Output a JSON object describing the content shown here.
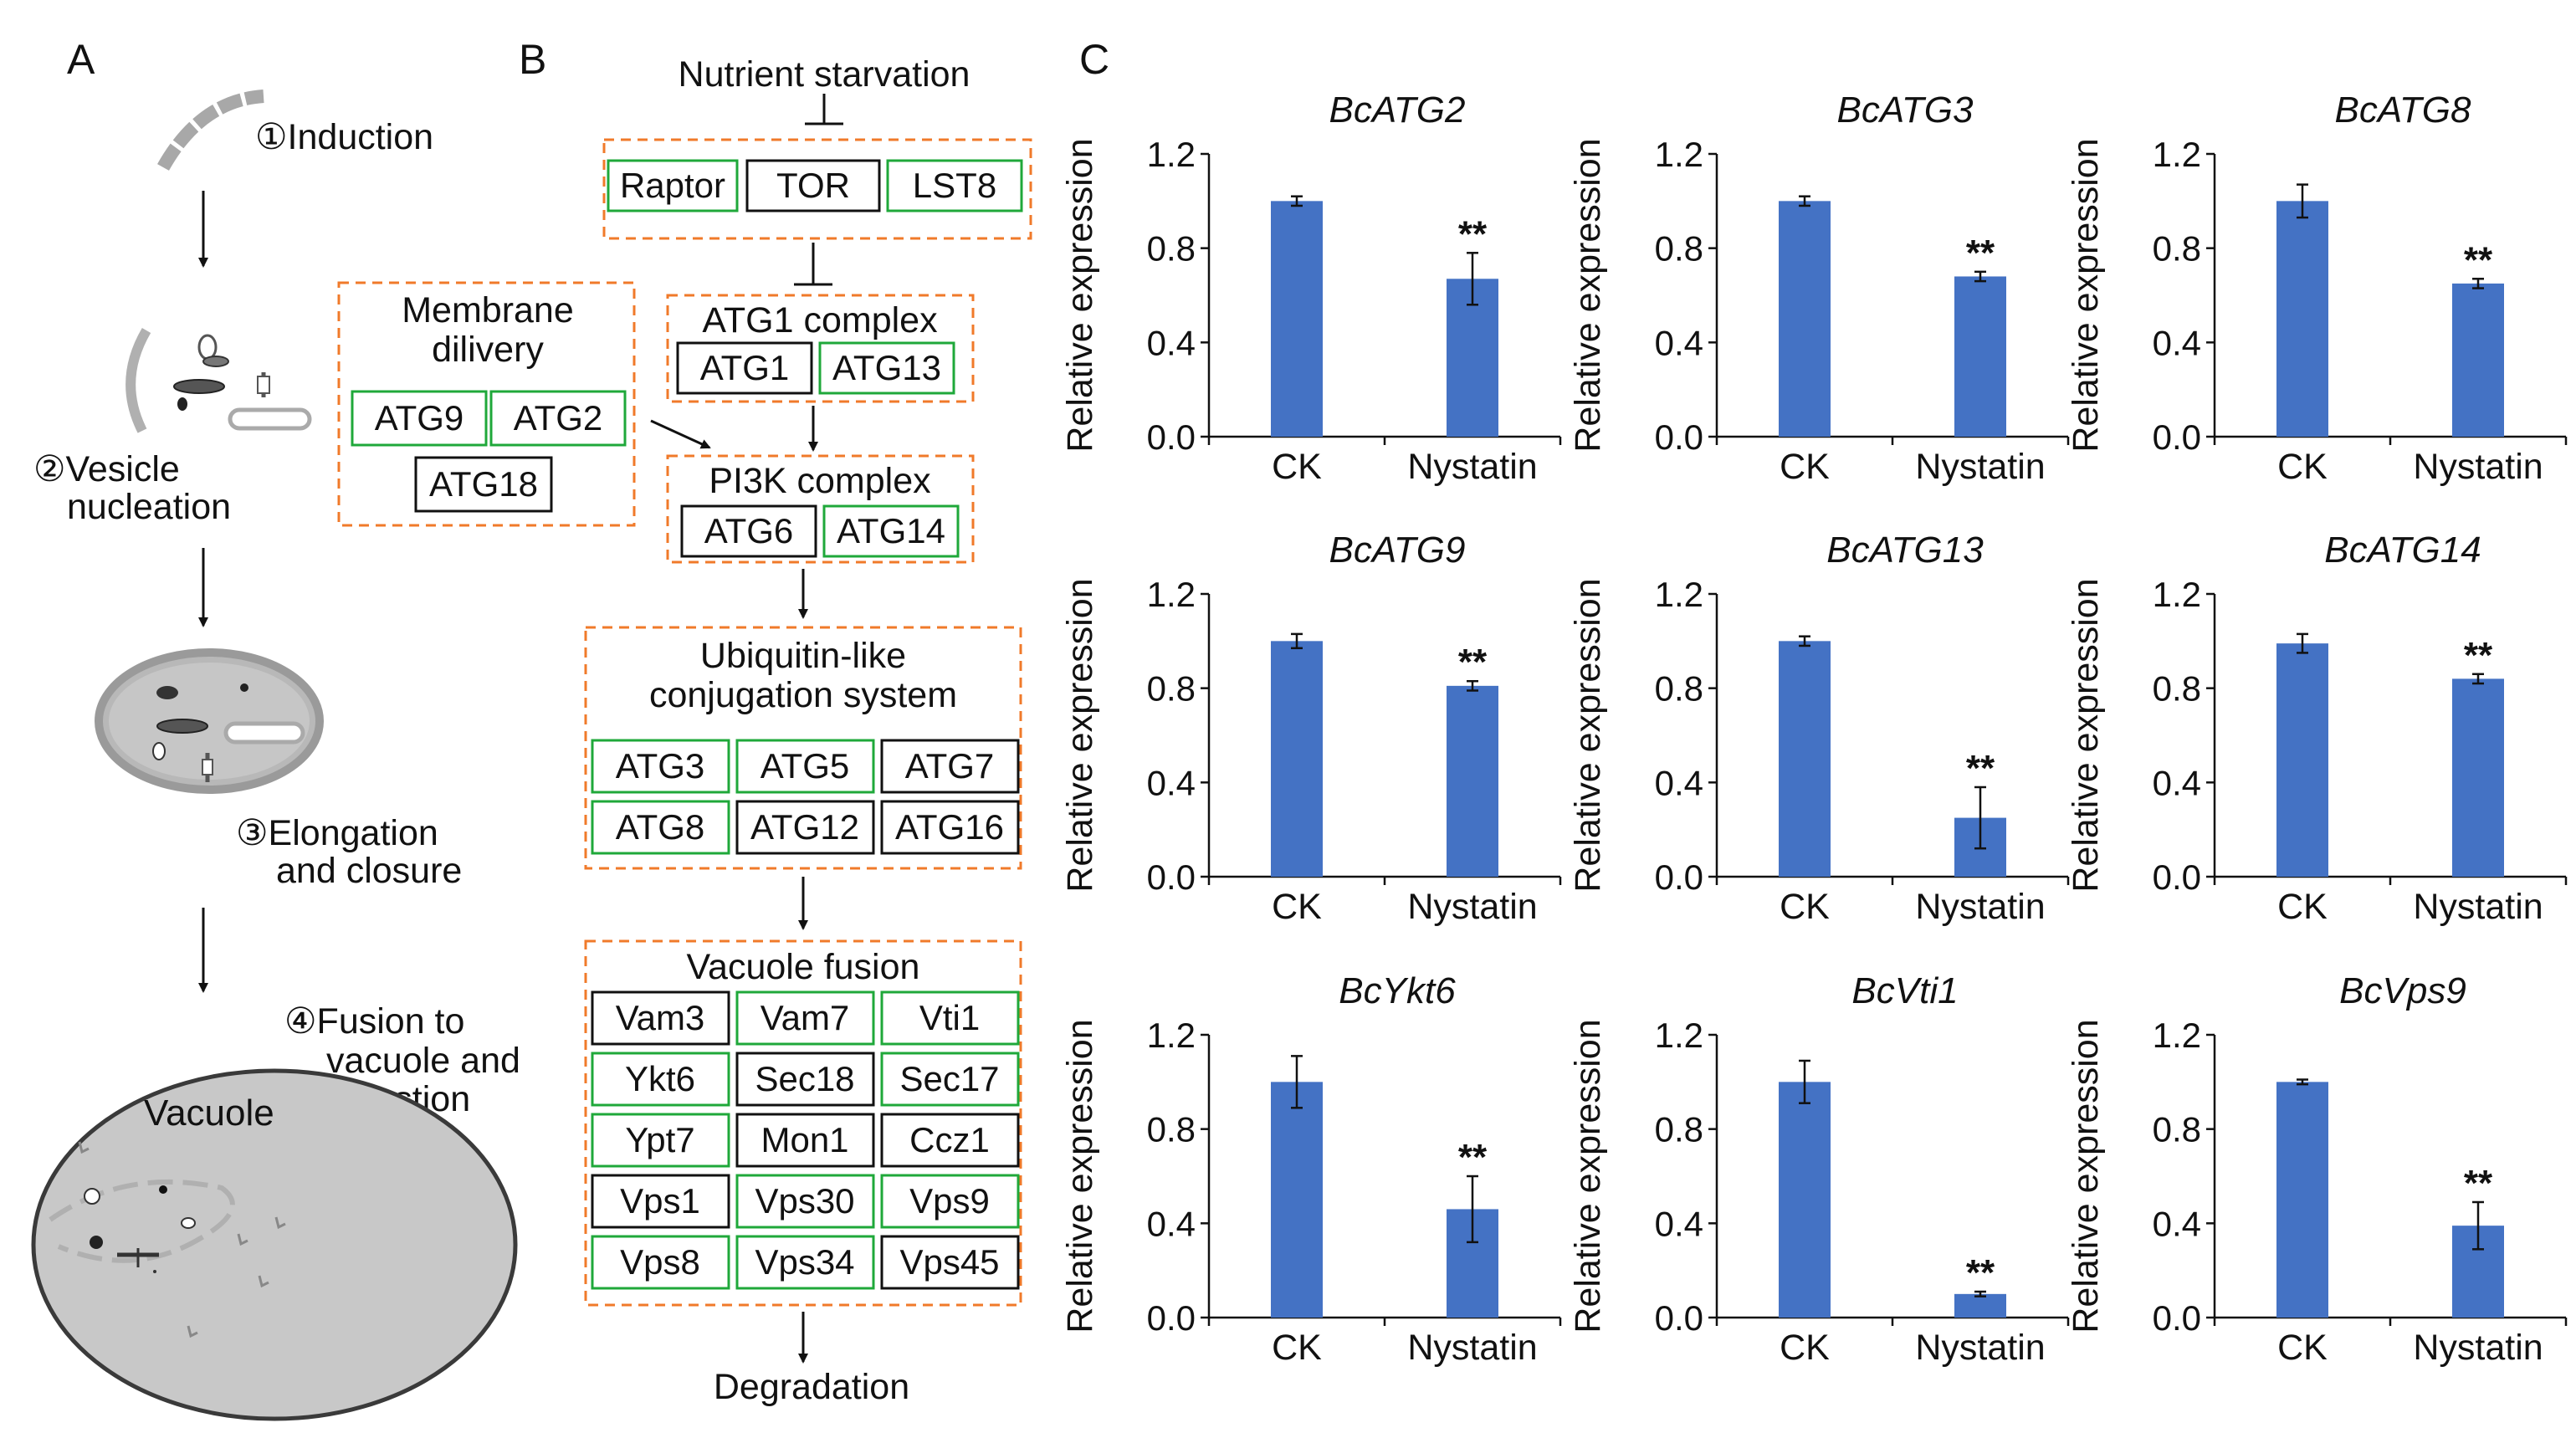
{
  "panels": {
    "a": "A",
    "b": "B",
    "c": "C"
  },
  "panel_a": {
    "steps": [
      {
        "lines": [
          "①Induction"
        ]
      },
      {
        "lines": [
          "②Vesicle",
          "nucleation"
        ]
      },
      {
        "lines": [
          "③Elongation",
          "and closure"
        ]
      },
      {
        "lines": [
          "④Fusion to",
          "vacuole and",
          "digestion"
        ]
      }
    ],
    "vacuole_label": "Vacuole"
  },
  "panel_b": {
    "top": "Nutrient starvation",
    "bottom": "Degradation",
    "tor_complex": [
      "Raptor",
      "TOR",
      "LST8"
    ],
    "membrane_delivery": {
      "title": [
        "Membrane",
        "dilivery"
      ],
      "items": [
        "ATG9",
        "ATG2",
        "ATG18"
      ]
    },
    "atg1_complex": {
      "title": "ATG1 complex",
      "items": [
        "ATG1",
        "ATG13"
      ]
    },
    "pi3k_complex": {
      "title": "PI3K complex",
      "items": [
        "ATG6",
        "ATG14"
      ]
    },
    "ubiquitin": {
      "title": [
        "Ubiquitin-like",
        "conjugation system"
      ],
      "items": [
        "ATG3",
        "ATG5",
        "ATG7",
        "ATG8",
        "ATG12",
        "ATG16"
      ]
    },
    "vacuole_fusion": {
      "title": "Vacuole fusion",
      "items": [
        "Vam3",
        "Vam7",
        "Vti1",
        "Ykt6",
        "Sec18",
        "Sec17",
        "Ypt7",
        "Mon1",
        "Ccz1",
        "Vps1",
        "Vps30",
        "Vps9",
        "Vps8",
        "Vps34",
        "Vps45"
      ]
    },
    "box_colors": {
      "green": "#1fa83a",
      "black": "#111111",
      "dashed": "#f07a2a"
    }
  },
  "chart_data": [
    {
      "type": "bar",
      "title": "BcATG2",
      "categories": [
        "CK",
        "Nystatin"
      ],
      "values": [
        1.0,
        0.67
      ],
      "errors": [
        0.02,
        0.11
      ],
      "significance": [
        "",
        "**"
      ],
      "ylabel": "Relative expression",
      "ylim": [
        0,
        1.2
      ],
      "yticks": [
        "0.0",
        "0.4",
        "0.8",
        "1.2"
      ]
    },
    {
      "type": "bar",
      "title": "BcATG3",
      "categories": [
        "CK",
        "Nystatin"
      ],
      "values": [
        1.0,
        0.68
      ],
      "errors": [
        0.02,
        0.02
      ],
      "significance": [
        "",
        "**"
      ],
      "ylabel": "Relative expression",
      "ylim": [
        0,
        1.2
      ],
      "yticks": [
        "0.0",
        "0.4",
        "0.8",
        "1.2"
      ]
    },
    {
      "type": "bar",
      "title": "BcATG8",
      "categories": [
        "CK",
        "Nystatin"
      ],
      "values": [
        1.0,
        0.65
      ],
      "errors": [
        0.07,
        0.02
      ],
      "significance": [
        "",
        "**"
      ],
      "ylabel": "Relative expression",
      "ylim": [
        0,
        1.2
      ],
      "yticks": [
        "0.0",
        "0.4",
        "0.8",
        "1.2"
      ]
    },
    {
      "type": "bar",
      "title": "BcATG9",
      "categories": [
        "CK",
        "Nystatin"
      ],
      "values": [
        1.0,
        0.81
      ],
      "errors": [
        0.03,
        0.02
      ],
      "significance": [
        "",
        "**"
      ],
      "ylabel": "Relative expression",
      "ylim": [
        0,
        1.2
      ],
      "yticks": [
        "0.0",
        "0.4",
        "0.8",
        "1.2"
      ]
    },
    {
      "type": "bar",
      "title": "BcATG13",
      "categories": [
        "CK",
        "Nystatin"
      ],
      "values": [
        1.0,
        0.25
      ],
      "errors": [
        0.02,
        0.13
      ],
      "significance": [
        "",
        "**"
      ],
      "ylabel": "Relative expression",
      "ylim": [
        0,
        1.2
      ],
      "yticks": [
        "0.0",
        "0.4",
        "0.8",
        "1.2"
      ]
    },
    {
      "type": "bar",
      "title": "BcATG14",
      "categories": [
        "CK",
        "Nystatin"
      ],
      "values": [
        0.99,
        0.84
      ],
      "errors": [
        0.04,
        0.02
      ],
      "significance": [
        "",
        "**"
      ],
      "ylabel": "Relative expression",
      "ylim": [
        0,
        1.2
      ],
      "yticks": [
        "0.0",
        "0.4",
        "0.8",
        "1.2"
      ]
    },
    {
      "type": "bar",
      "title": "BcYkt6",
      "categories": [
        "CK",
        "Nystatin"
      ],
      "values": [
        1.0,
        0.46
      ],
      "errors": [
        0.11,
        0.14
      ],
      "significance": [
        "",
        "**"
      ],
      "ylabel": "Relative expression",
      "ylim": [
        0,
        1.2
      ],
      "yticks": [
        "0.0",
        "0.4",
        "0.8",
        "1.2"
      ]
    },
    {
      "type": "bar",
      "title": "BcVti1",
      "categories": [
        "CK",
        "Nystatin"
      ],
      "values": [
        1.0,
        0.1
      ],
      "errors": [
        0.09,
        0.01
      ],
      "significance": [
        "",
        "**"
      ],
      "ylabel": "Relative expression",
      "ylim": [
        0,
        1.2
      ],
      "yticks": [
        "0.0",
        "0.4",
        "0.8",
        "1.2"
      ]
    },
    {
      "type": "bar",
      "title": "BcVps9",
      "categories": [
        "CK",
        "Nystatin"
      ],
      "values": [
        1.0,
        0.39
      ],
      "errors": [
        0.01,
        0.1
      ],
      "significance": [
        "",
        "**"
      ],
      "ylabel": "Relative expression",
      "ylim": [
        0,
        1.2
      ],
      "yticks": [
        "0.0",
        "0.4",
        "0.8",
        "1.2"
      ]
    }
  ],
  "colors": {
    "bar": "#4472c4"
  }
}
